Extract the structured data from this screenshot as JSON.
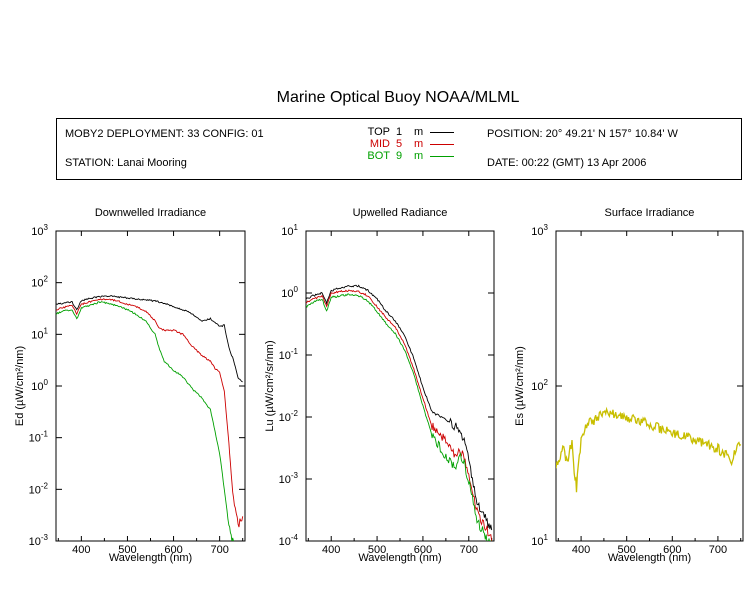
{
  "title": "Marine Optical Buoy NOAA/MLML",
  "info": {
    "deployment": "MOBY2 DEPLOYMENT: 33 CONFIG: 01",
    "station": "STATION: Lanai Mooring",
    "position": "POSITION: 20° 49.21' N   157° 10.84' W",
    "date": "DATE: 00:22 (GMT) 13 Apr 2006"
  },
  "legend": [
    {
      "name": "TOP",
      "depth": "1",
      "unit": "m",
      "color": "#000000"
    },
    {
      "name": "MID",
      "depth": "5",
      "unit": "m",
      "color": "#cc0000"
    },
    {
      "name": "BOT",
      "depth": "9",
      "unit": "m",
      "color": "#00a000"
    }
  ],
  "colors": {
    "top": "#000000",
    "mid": "#cc0000",
    "bot": "#00a000",
    "surface": "#c8be00"
  },
  "chart_data": [
    {
      "type": "line",
      "title": "Downwelled Irradiance",
      "xlabel": "Wavelength (nm)",
      "ylabel": "Ed  (µW/cm²/nm)",
      "xlim": [
        345,
        755
      ],
      "ylim": [
        0.001,
        1000
      ],
      "yscale": "log",
      "xticks": [
        400,
        500,
        600,
        700
      ],
      "yticks": [
        "10^-3",
        "10^-2",
        "10^-1",
        "10^0",
        "10^1",
        "10^2",
        "10^3"
      ],
      "series": [
        {
          "name": "TOP",
          "x": [
            345,
            360,
            380,
            390,
            400,
            420,
            440,
            460,
            480,
            500,
            520,
            540,
            560,
            580,
            600,
            620,
            640,
            660,
            680,
            690,
            700,
            710,
            720,
            730,
            740,
            750
          ],
          "values": [
            38,
            40,
            42,
            30,
            45,
            50,
            54,
            55,
            53,
            50,
            48,
            47,
            44,
            40,
            34,
            30,
            25,
            18,
            20,
            17,
            14,
            15,
            5.5,
            3.2,
            1.4,
            1.2
          ]
        },
        {
          "name": "MID",
          "x": [
            345,
            360,
            380,
            390,
            400,
            420,
            440,
            460,
            480,
            500,
            520,
            540,
            560,
            570,
            580,
            600,
            620,
            640,
            660,
            680,
            690,
            700,
            710,
            720,
            725,
            730,
            740,
            750
          ],
          "values": [
            30,
            33,
            36,
            25,
            38,
            43,
            47,
            48,
            44,
            38,
            34,
            28,
            18,
            13,
            12,
            12,
            10,
            6,
            4,
            3,
            2.2,
            1.8,
            0.8,
            0.08,
            0.02,
            0.006,
            0.002,
            0.003
          ]
        },
        {
          "name": "BOT",
          "x": [
            345,
            360,
            380,
            390,
            400,
            420,
            440,
            460,
            480,
            500,
            520,
            540,
            560,
            570,
            580,
            600,
            620,
            640,
            660,
            680,
            700,
            710,
            720,
            725,
            730
          ],
          "values": [
            25,
            28,
            30,
            20,
            32,
            37,
            42,
            40,
            35,
            30,
            24,
            18,
            10,
            5,
            3,
            2,
            1.5,
            0.9,
            0.6,
            0.35,
            0.05,
            0.01,
            0.002,
            0.0012,
            0.001
          ]
        }
      ]
    },
    {
      "type": "line",
      "title": "Upwelled Radiance",
      "xlabel": "Wavelength (nm)",
      "ylabel": "Lu  (µW/cm²/sr/nm)",
      "xlim": [
        345,
        755
      ],
      "ylim": [
        0.0001,
        10
      ],
      "yscale": "log",
      "xticks": [
        400,
        500,
        600,
        700
      ],
      "yticks": [
        "10^-4",
        "10^-3",
        "10^-2",
        "10^-1",
        "10^0",
        "10^1"
      ],
      "series": [
        {
          "name": "TOP",
          "x": [
            345,
            360,
            380,
            390,
            400,
            420,
            440,
            460,
            480,
            500,
            520,
            540,
            560,
            580,
            600,
            620,
            640,
            660,
            670,
            680,
            690,
            700,
            710,
            720,
            730,
            740,
            750
          ],
          "values": [
            0.8,
            0.9,
            1.0,
            0.7,
            1.1,
            1.2,
            1.3,
            1.3,
            1.1,
            0.8,
            0.5,
            0.35,
            0.2,
            0.09,
            0.03,
            0.012,
            0.01,
            0.008,
            0.007,
            0.006,
            0.004,
            0.002,
            0.0008,
            0.0004,
            0.0003,
            0.0002,
            0.00015
          ]
        },
        {
          "name": "MID",
          "x": [
            345,
            360,
            380,
            390,
            400,
            420,
            440,
            460,
            480,
            500,
            520,
            540,
            560,
            580,
            600,
            620,
            640,
            660,
            670,
            680,
            690,
            700,
            710,
            720,
            730,
            740,
            750
          ],
          "values": [
            0.7,
            0.8,
            0.9,
            0.6,
            1.0,
            1.05,
            1.1,
            1.05,
            0.9,
            0.6,
            0.4,
            0.28,
            0.15,
            0.06,
            0.02,
            0.007,
            0.005,
            0.003,
            0.0025,
            0.003,
            0.0022,
            0.0011,
            0.0005,
            0.0003,
            0.0002,
            0.00015,
            0.0001
          ]
        },
        {
          "name": "BOT",
          "x": [
            345,
            360,
            380,
            390,
            400,
            420,
            440,
            460,
            480,
            500,
            520,
            540,
            560,
            580,
            600,
            620,
            640,
            660,
            670,
            680,
            690,
            700,
            710,
            720,
            730,
            740,
            750
          ],
          "values": [
            0.6,
            0.7,
            0.8,
            0.5,
            0.85,
            0.9,
            0.95,
            0.9,
            0.75,
            0.5,
            0.32,
            0.22,
            0.12,
            0.05,
            0.015,
            0.005,
            0.003,
            0.0018,
            0.0015,
            0.0025,
            0.0018,
            0.0009,
            0.0004,
            0.0002,
            0.00015,
            0.0001,
            0.0001
          ]
        }
      ]
    },
    {
      "type": "line",
      "title": "Surface Irradiance",
      "xlabel": "Wavelength (nm)",
      "ylabel": "Es  (µW/cm²/nm)",
      "xlim": [
        345,
        755
      ],
      "ylim": [
        10,
        1000
      ],
      "yscale": "log",
      "xticks": [
        400,
        500,
        600,
        700
      ],
      "yticks": [
        "10^1",
        "10^2",
        "10^3"
      ],
      "series": [
        {
          "name": "Es",
          "x": [
            345,
            360,
            370,
            380,
            385,
            390,
            400,
            410,
            420,
            430,
            440,
            450,
            460,
            480,
            500,
            520,
            540,
            560,
            580,
            600,
            620,
            640,
            660,
            680,
            690,
            700,
            710,
            720,
            730,
            740,
            750
          ],
          "values": [
            30,
            40,
            32,
            45,
            28,
            22,
            45,
            55,
            58,
            60,
            64,
            70,
            68,
            65,
            63,
            60,
            58,
            55,
            52,
            50,
            48,
            46,
            44,
            42,
            38,
            40,
            36,
            38,
            33,
            40,
            42
          ]
        }
      ]
    }
  ]
}
